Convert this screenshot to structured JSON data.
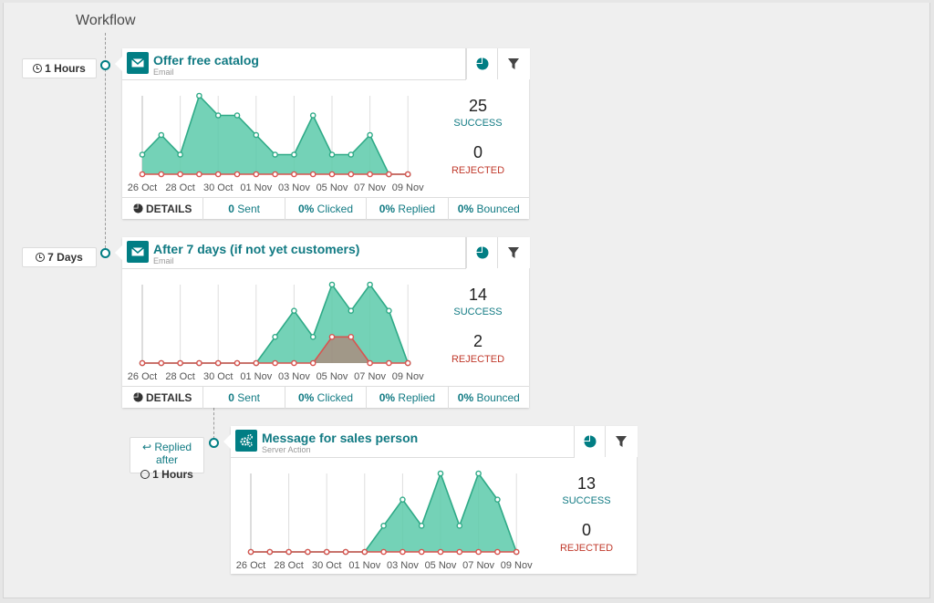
{
  "workflow": {
    "title": "Workflow"
  },
  "tags": {
    "t1": "1 Hours",
    "t2": "7 Days",
    "t3_label": "Replied after",
    "t3_time": "1 Hours"
  },
  "colors": {
    "accent": "#017e84",
    "success_fill": "#5ccaaa",
    "success_line": "#2faa87",
    "rejected": "#d9534f"
  },
  "x_labels": [
    "26 Oct",
    "28 Oct",
    "30 Oct",
    "01 Nov",
    "03 Nov",
    "05 Nov",
    "07 Nov",
    "09 Nov"
  ],
  "cards": [
    {
      "title": "Offer free catalog",
      "subtitle": "Email",
      "icon": "envelope-icon",
      "success": "25",
      "success_label": "SUCCESS",
      "rejected": "0",
      "rejected_label": "REJECTED",
      "footer": {
        "details": "DETAILS",
        "sent_val": "0",
        "sent": "Sent",
        "clicked_val": "0%",
        "clicked": "Clicked",
        "replied_val": "0%",
        "replied": "Replied",
        "bounced_val": "0%",
        "bounced": "Bounced"
      }
    },
    {
      "title": "After 7 days (if not yet customers)",
      "subtitle": "Email",
      "icon": "envelope-icon",
      "success": "14",
      "success_label": "SUCCESS",
      "rejected": "2",
      "rejected_label": "REJECTED",
      "footer": {
        "details": "DETAILS",
        "sent_val": "0",
        "sent": "Sent",
        "clicked_val": "0%",
        "clicked": "Clicked",
        "replied_val": "0%",
        "replied": "Replied",
        "bounced_val": "0%",
        "bounced": "Bounced"
      }
    },
    {
      "title": "Message for sales person",
      "subtitle": "Server Action",
      "icon": "gears-icon",
      "success": "13",
      "success_label": "SUCCESS",
      "rejected": "0",
      "rejected_label": "REJECTED"
    }
  ],
  "chart_data": [
    {
      "type": "area",
      "x": [
        "26 Oct",
        "27 Oct",
        "28 Oct",
        "29 Oct",
        "30 Oct",
        "31 Oct",
        "01 Nov",
        "02 Nov",
        "03 Nov",
        "04 Nov",
        "05 Nov",
        "06 Nov",
        "07 Nov",
        "08 Nov",
        "09 Nov"
      ],
      "series": [
        {
          "values": [
            1,
            2,
            1,
            4,
            3,
            3,
            2,
            1,
            1,
            3,
            1,
            1,
            2,
            0,
            0
          ]
        },
        {
          "values": [
            0,
            0,
            0,
            0,
            0,
            0,
            0,
            0,
            0,
            0,
            0,
            0,
            0,
            0,
            0
          ]
        }
      ],
      "ylim": [
        0,
        4
      ]
    },
    {
      "type": "area",
      "x": [
        "26 Oct",
        "27 Oct",
        "28 Oct",
        "29 Oct",
        "30 Oct",
        "31 Oct",
        "01 Nov",
        "02 Nov",
        "03 Nov",
        "04 Nov",
        "05 Nov",
        "06 Nov",
        "07 Nov",
        "08 Nov",
        "09 Nov"
      ],
      "series": [
        {
          "values": [
            0,
            0,
            0,
            0,
            0,
            0,
            0,
            1,
            2,
            1,
            3,
            2,
            3,
            2,
            0
          ]
        },
        {
          "values": [
            0,
            0,
            0,
            0,
            0,
            0,
            0,
            0,
            0,
            0,
            1,
            1,
            0,
            0,
            0
          ]
        }
      ],
      "ylim": [
        0,
        3
      ]
    },
    {
      "type": "area",
      "x": [
        "26 Oct",
        "27 Oct",
        "28 Oct",
        "29 Oct",
        "30 Oct",
        "31 Oct",
        "01 Nov",
        "02 Nov",
        "03 Nov",
        "04 Nov",
        "05 Nov",
        "06 Nov",
        "07 Nov",
        "08 Nov",
        "09 Nov"
      ],
      "series": [
        {
          "values": [
            0,
            0,
            0,
            0,
            0,
            0,
            0,
            1,
            2,
            1,
            3,
            1,
            3,
            2,
            0
          ]
        },
        {
          "values": [
            0,
            0,
            0,
            0,
            0,
            0,
            0,
            0,
            0,
            0,
            0,
            0,
            0,
            0,
            0
          ]
        }
      ],
      "ylim": [
        0,
        3
      ]
    }
  ]
}
